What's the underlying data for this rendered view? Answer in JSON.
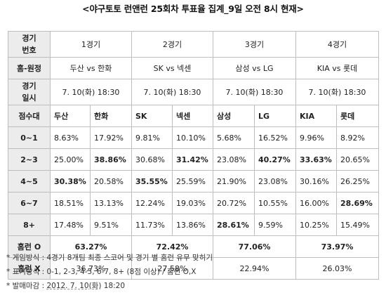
{
  "title": "<야구토토 런앤런 25회차 투표율 집계_9일 오전 8시 현재>",
  "header": {
    "game_no_label": "경기\n번호",
    "games": [
      "1경기",
      "2경기",
      "3경기",
      "4경기"
    ]
  },
  "matchup": {
    "label": "홈-원정",
    "values": [
      "두산 vs 한화",
      "SK vs 넥센",
      "삼성 vs LG",
      "KIA vs 롯데"
    ]
  },
  "datetime": {
    "label": "경기\n일시",
    "values": [
      "7. 10(화) 18:30",
      "7. 10(화) 18:30",
      "7. 10(화) 18:30",
      "7. 10(화) 18:30"
    ]
  },
  "score_header": {
    "label": "점수대",
    "teams": [
      "두산",
      "한화",
      "SK",
      "넥센",
      "삼성",
      "LG",
      "KIA",
      "롯데"
    ]
  },
  "score_rows": [
    {
      "range": "0~1",
      "values": [
        "8.63%",
        "17.92%",
        "9.81%",
        "10.10%",
        "5.68%",
        "16.52%",
        "9.96%",
        "8.92%"
      ],
      "bold": []
    },
    {
      "range": "2~3",
      "values": [
        "25.00%",
        "38.86%",
        "30.68%",
        "31.42%",
        "23.08%",
        "40.27%",
        "33.63%",
        "20.65%"
      ],
      "bold": [
        1,
        3,
        5,
        6
      ]
    },
    {
      "range": "4~5",
      "values": [
        "30.38%",
        "20.58%",
        "35.55%",
        "25.59%",
        "21.90%",
        "23.08%",
        "30.16%",
        "26.25%"
      ],
      "bold": [
        0,
        2
      ]
    },
    {
      "range": "6~7",
      "values": [
        "18.51%",
        "13.13%",
        "12.24%",
        "19.03%",
        "20.72%",
        "10.55%",
        "16.00%",
        "28.69%"
      ],
      "bold": [
        7
      ]
    },
    {
      "range": "8+",
      "values": [
        "17.48%",
        "9.51%",
        "11.73%",
        "13.86%",
        "28.61%",
        "9.59%",
        "10.25%",
        "15.49%"
      ],
      "bold": [
        4
      ]
    }
  ],
  "homerun_o": {
    "label": "홈런 O",
    "values": [
      "63.27%",
      "72.42%",
      "77.06%",
      "73.97%"
    ]
  },
  "homerun_x": {
    "label": "홈런 X",
    "values": [
      "36.73%",
      "27.58%",
      "22.94%",
      "26.03%"
    ]
  },
  "notes": {
    "n1": "* 게임방식 : 4경기 8개팀 최종 스코어 및 경기 별 홈런 유무 맞히기",
    "n2": "* 표기방식 : 0-1, 2-3, 4-5, 6-7, 8+ (8점 이상) / 홈런 O,X",
    "n3_prefix": "* 발매마감 : ",
    "n3_date": "2012. 7. 10(화)",
    "n3_time": " 18:20"
  }
}
